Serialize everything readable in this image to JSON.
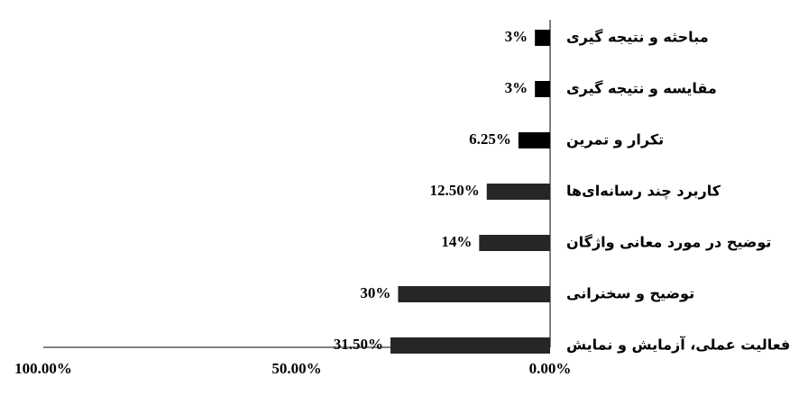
{
  "chart_data": {
    "type": "barh",
    "categories": [
      "مباحثه و نتیجه گیری",
      "مقایسه و نتیجه گیری",
      "تکرار و تمرین",
      "کاربرد چند رسانه‌ای‌ها",
      "توضیح در مورد معانی واژگان",
      "توضیح و سخنرانی",
      "فعالیت عملی، آزمایش و نمایش"
    ],
    "values": [
      3,
      3,
      6.25,
      12.5,
      14,
      30,
      31.5
    ],
    "value_labels": [
      "3%",
      "3%",
      "6.25%",
      "12.50%",
      "14%",
      "30%",
      "31.50%"
    ],
    "colors": [
      "#000000",
      "#000000",
      "#000000",
      "#262626",
      "#262626",
      "#262626",
      "#262626"
    ],
    "xlim": [
      0,
      100
    ],
    "x_reversed": true,
    "xticks": [
      {
        "value": 100,
        "label": "100.00%"
      },
      {
        "value": 50,
        "label": "50.00%"
      },
      {
        "value": 0,
        "label": "0.00%"
      }
    ]
  }
}
